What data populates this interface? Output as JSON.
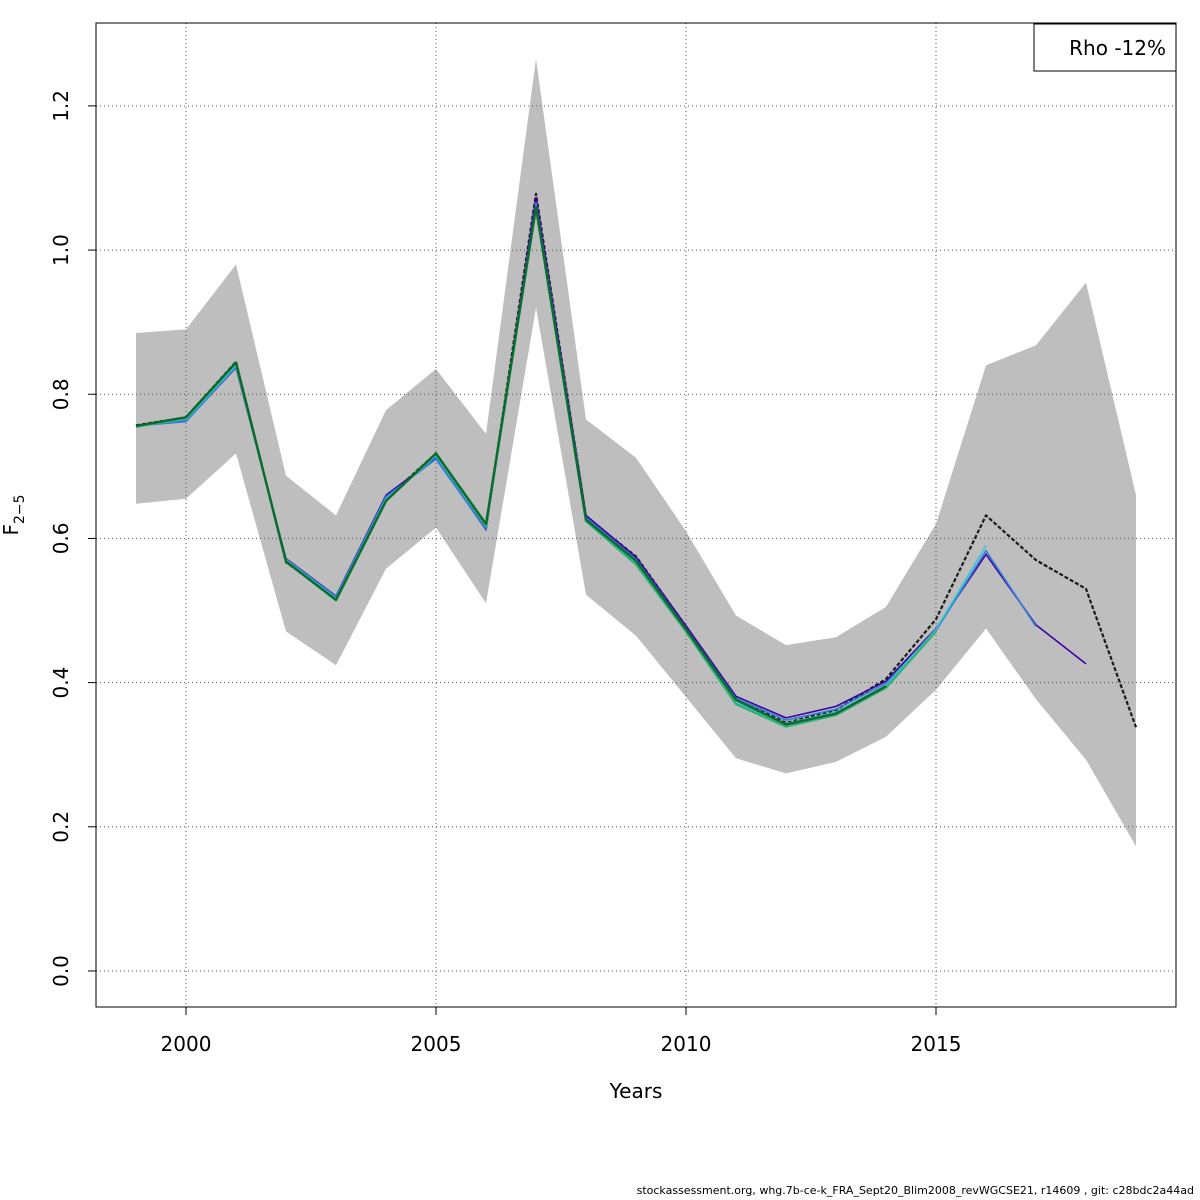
{
  "chart_data": {
    "type": "line",
    "xlabel": "Years",
    "ylabel_main": "F",
    "ylabel_sub": "2−5",
    "xlim": [
      1998.2,
      2019.8
    ],
    "ylim": [
      -0.05,
      1.315
    ],
    "x_ticks": [
      2000,
      2005,
      2010,
      2015
    ],
    "y_ticks": [
      0.0,
      0.2,
      0.4,
      0.6,
      0.8,
      1.0,
      1.2
    ],
    "y_tick_labels": [
      "0.0",
      "0.2",
      "0.4",
      "0.6",
      "0.8",
      "1.0",
      "1.2"
    ],
    "grid": true,
    "legend_position": "top-right",
    "legend_text": "Rho -12%",
    "confidence_band": {
      "color": "#bebebe",
      "x": [
        1999,
        2000,
        2001,
        2002,
        2003,
        2004,
        2005,
        2006,
        2007,
        2008,
        2009,
        2010,
        2011,
        2012,
        2013,
        2014,
        2015,
        2016,
        2017,
        2018,
        2019
      ],
      "upper": [
        0.885,
        0.89,
        0.98,
        0.687,
        0.632,
        0.778,
        0.835,
        0.745,
        1.265,
        0.765,
        0.712,
        0.61,
        0.493,
        0.452,
        0.463,
        0.505,
        0.62,
        0.84,
        0.868,
        0.955,
        0.66
      ],
      "lower": [
        0.648,
        0.655,
        0.718,
        0.471,
        0.424,
        0.558,
        0.615,
        0.51,
        0.92,
        0.522,
        0.465,
        0.38,
        0.295,
        0.274,
        0.29,
        0.325,
        0.39,
        0.475,
        0.377,
        0.293,
        0.173
      ]
    },
    "series": [
      {
        "color": "#1a1a1a",
        "dashed": true,
        "width": 2.2,
        "x": [
          1999,
          2000,
          2001,
          2002,
          2003,
          2004,
          2005,
          2006,
          2007,
          2008,
          2009,
          2010,
          2011,
          2012,
          2013,
          2014,
          2015,
          2016,
          2017,
          2018,
          2019
        ],
        "values": [
          0.757,
          0.768,
          0.845,
          0.567,
          0.517,
          0.655,
          0.718,
          0.616,
          1.078,
          0.63,
          0.575,
          0.478,
          0.378,
          0.344,
          0.362,
          0.405,
          0.488,
          0.632,
          0.57,
          0.53,
          0.338
        ]
      },
      {
        "color": "#3f00a8",
        "dashed": false,
        "width": 1.6,
        "x": [
          1999,
          2000,
          2001,
          2002,
          2003,
          2004,
          2005,
          2006,
          2007,
          2008,
          2009,
          2010,
          2011,
          2012,
          2013,
          2014,
          2015,
          2016,
          2017,
          2018
        ],
        "values": [
          0.756,
          0.763,
          0.837,
          0.572,
          0.52,
          0.66,
          0.712,
          0.612,
          1.073,
          0.632,
          0.574,
          0.479,
          0.381,
          0.351,
          0.367,
          0.402,
          0.475,
          0.578,
          0.48,
          0.426
        ]
      },
      {
        "color": "#2c7fd8",
        "dashed": false,
        "width": 1.6,
        "x": [
          1999,
          2000,
          2001,
          2002,
          2003,
          2004,
          2005,
          2006,
          2007,
          2008,
          2009,
          2010,
          2011,
          2012,
          2013,
          2014,
          2015,
          2016,
          2017
        ],
        "values": [
          0.756,
          0.762,
          0.838,
          0.571,
          0.519,
          0.658,
          0.71,
          0.613,
          1.065,
          0.629,
          0.571,
          0.475,
          0.378,
          0.348,
          0.363,
          0.399,
          0.472,
          0.583,
          0.478
        ]
      },
      {
        "color": "#3fc4d4",
        "dashed": false,
        "width": 1.6,
        "x": [
          1999,
          2000,
          2001,
          2002,
          2003,
          2004,
          2005,
          2006,
          2007,
          2008,
          2009,
          2010,
          2011,
          2012,
          2013,
          2014,
          2015,
          2016
        ],
        "values": [
          0.756,
          0.765,
          0.84,
          0.57,
          0.517,
          0.655,
          0.714,
          0.617,
          1.062,
          0.626,
          0.567,
          0.472,
          0.372,
          0.343,
          0.359,
          0.396,
          0.474,
          0.59
        ]
      },
      {
        "color": "#2fb27a",
        "dashed": false,
        "width": 2.4,
        "x": [
          1999,
          2000,
          2001,
          2002,
          2003,
          2004,
          2005,
          2006,
          2007,
          2008,
          2009,
          2010,
          2011,
          2012,
          2013,
          2014,
          2015
        ],
        "values": [
          0.755,
          0.767,
          0.843,
          0.568,
          0.514,
          0.652,
          0.717,
          0.618,
          1.058,
          0.624,
          0.564,
          0.471,
          0.37,
          0.339,
          0.355,
          0.393,
          0.471
        ]
      },
      {
        "color": "#0b6b2c",
        "dashed": false,
        "width": 2.4,
        "x": [
          1999,
          2000,
          2001,
          2002,
          2003,
          2004,
          2005,
          2006,
          2007,
          2008,
          2009,
          2010,
          2011,
          2012,
          2013,
          2014
        ],
        "values": [
          0.756,
          0.768,
          0.844,
          0.568,
          0.515,
          0.652,
          0.718,
          0.62,
          1.06,
          0.626,
          0.569,
          0.474,
          0.376,
          0.342,
          0.357,
          0.395
        ]
      }
    ]
  },
  "footer_text": "stockassessment.org, whg.7b-ce-k_FRA_Sept20_Blim2008_revWGCSE21, r14609 , git: c28bdc2a44ad"
}
